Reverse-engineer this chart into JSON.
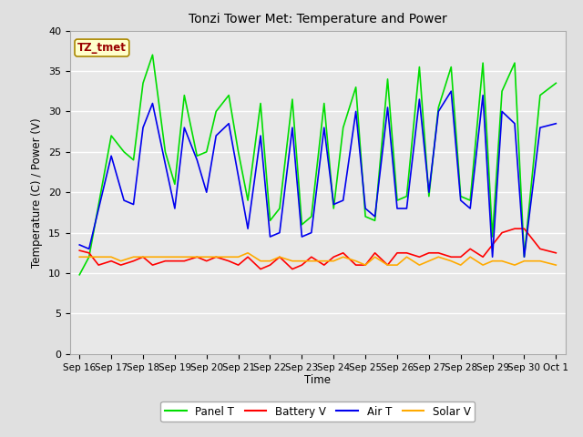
{
  "title": "Tonzi Tower Met: Temperature and Power",
  "xlabel": "Time",
  "ylabel": "Temperature (C) / Power (V)",
  "ylim": [
    0,
    40
  ],
  "yticks": [
    0,
    5,
    10,
    15,
    20,
    25,
    30,
    35,
    40
  ],
  "background_color": "#e8e8e8",
  "grid_color": "#ffffff",
  "fig_bg_color": "#e0e0e0",
  "annotation_text": "TZ_tmet",
  "annotation_bg": "#ffffcc",
  "annotation_border": "#aa8800",
  "annotation_text_color": "#990000",
  "line_colors": {
    "panel_t": "#00dd00",
    "battery_v": "#ff0000",
    "air_t": "#0000ee",
    "solar_v": "#ffaa00"
  },
  "panel_t_x": [
    0,
    0.3,
    1.0,
    1.4,
    1.7,
    2.0,
    2.3,
    2.7,
    3.0,
    3.3,
    3.7,
    4.0,
    4.3,
    4.7,
    5.0,
    5.3,
    5.7,
    6.0,
    6.3,
    6.7,
    7.0,
    7.3,
    7.7,
    8.0,
    8.3,
    8.7,
    9.0,
    9.3,
    9.7,
    10.0,
    10.3,
    10.7,
    11.0,
    11.3,
    11.7,
    12.0,
    12.3,
    12.7,
    13.0,
    13.3,
    13.7,
    14.0,
    14.5,
    15.0
  ],
  "panel_t": [
    9.8,
    12,
    27,
    25,
    24,
    33.5,
    37,
    25,
    21,
    32,
    24.5,
    25,
    30,
    32,
    25,
    19,
    31,
    16.5,
    18,
    31.5,
    16,
    17,
    31,
    18,
    28,
    33,
    17,
    16.5,
    34,
    19,
    19.5,
    35.5,
    19.5,
    30.5,
    35.5,
    19.5,
    19,
    36,
    14.5,
    32.5,
    36,
    12,
    32,
    33.5
  ],
  "battery_v_x": [
    0,
    0.3,
    0.6,
    1.0,
    1.3,
    1.7,
    2.0,
    2.3,
    2.7,
    3.0,
    3.3,
    3.7,
    4.0,
    4.3,
    4.7,
    5.0,
    5.3,
    5.7,
    6.0,
    6.3,
    6.7,
    7.0,
    7.3,
    7.7,
    8.0,
    8.3,
    8.7,
    9.0,
    9.3,
    9.7,
    10.0,
    10.3,
    10.7,
    11.0,
    11.3,
    11.7,
    12.0,
    12.3,
    12.7,
    13.0,
    13.3,
    13.7,
    14.0,
    14.5,
    15.0
  ],
  "battery_v": [
    12.8,
    12.5,
    11.0,
    11.5,
    11.0,
    11.5,
    12.0,
    11.0,
    11.5,
    11.5,
    11.5,
    12.0,
    11.5,
    12.0,
    11.5,
    11.0,
    12.0,
    10.5,
    11.0,
    12.0,
    10.5,
    11.0,
    12.0,
    11.0,
    12.0,
    12.5,
    11.0,
    11.0,
    12.5,
    11.0,
    12.5,
    12.5,
    12.0,
    12.5,
    12.5,
    12.0,
    12.0,
    13.0,
    12.0,
    13.5,
    15.0,
    15.5,
    15.5,
    13.0,
    12.5
  ],
  "air_t_x": [
    0,
    0.3,
    1.0,
    1.4,
    1.7,
    2.0,
    2.3,
    2.7,
    3.0,
    3.3,
    3.7,
    4.0,
    4.3,
    4.7,
    5.0,
    5.3,
    5.7,
    6.0,
    6.3,
    6.7,
    7.0,
    7.3,
    7.7,
    8.0,
    8.3,
    8.7,
    9.0,
    9.3,
    9.7,
    10.0,
    10.3,
    10.7,
    11.0,
    11.3,
    11.7,
    12.0,
    12.3,
    12.7,
    13.0,
    13.3,
    13.7,
    14.0,
    14.5,
    15.0
  ],
  "air_t": [
    13.5,
    13.0,
    24.5,
    19.0,
    18.5,
    28.0,
    31.0,
    23.5,
    18.0,
    28.0,
    24.0,
    20.0,
    27.0,
    28.5,
    22.0,
    15.5,
    27.0,
    14.5,
    15.0,
    28.0,
    14.5,
    15.0,
    28.0,
    18.5,
    19.0,
    30.0,
    18.0,
    17.0,
    30.5,
    18.0,
    18.0,
    31.5,
    20.0,
    30.0,
    32.5,
    19.0,
    18.0,
    32.0,
    12.0,
    30.0,
    28.5,
    12.0,
    28.0,
    28.5
  ],
  "solar_v_x": [
    0,
    0.3,
    0.6,
    1.0,
    1.3,
    1.7,
    2.0,
    2.3,
    2.7,
    3.0,
    3.3,
    3.7,
    4.0,
    4.3,
    4.7,
    5.0,
    5.3,
    5.7,
    6.0,
    6.3,
    6.7,
    7.0,
    7.3,
    7.7,
    8.0,
    8.3,
    8.7,
    9.0,
    9.3,
    9.7,
    10.0,
    10.3,
    10.7,
    11.0,
    11.3,
    11.7,
    12.0,
    12.3,
    12.7,
    13.0,
    13.3,
    13.7,
    14.0,
    14.5,
    15.0
  ],
  "solar_v": [
    12.0,
    12.0,
    12.0,
    12.0,
    11.5,
    12.0,
    12.0,
    12.0,
    12.0,
    12.0,
    12.0,
    12.0,
    12.0,
    12.0,
    12.0,
    12.0,
    12.5,
    11.5,
    11.5,
    12.0,
    11.5,
    11.5,
    11.5,
    11.5,
    11.5,
    12.0,
    11.5,
    11.0,
    12.0,
    11.0,
    11.0,
    12.0,
    11.0,
    11.5,
    12.0,
    11.5,
    11.0,
    12.0,
    11.0,
    11.5,
    11.5,
    11.0,
    11.5,
    11.5,
    11.0
  ],
  "x_tick_labels": [
    "Sep 16",
    "Sep 17",
    "Sep 18",
    "Sep 19",
    "Sep 20",
    "Sep 21",
    "Sep 22",
    "Sep 23",
    "Sep 24",
    "Sep 25",
    "Sep 26",
    "Sep 27",
    "Sep 28",
    "Sep 29",
    "Sep 30",
    "Oct 1"
  ],
  "x_tick_pos": [
    0,
    1,
    2,
    3,
    4,
    5,
    6,
    7,
    8,
    9,
    10,
    11,
    12,
    13,
    14,
    15
  ]
}
